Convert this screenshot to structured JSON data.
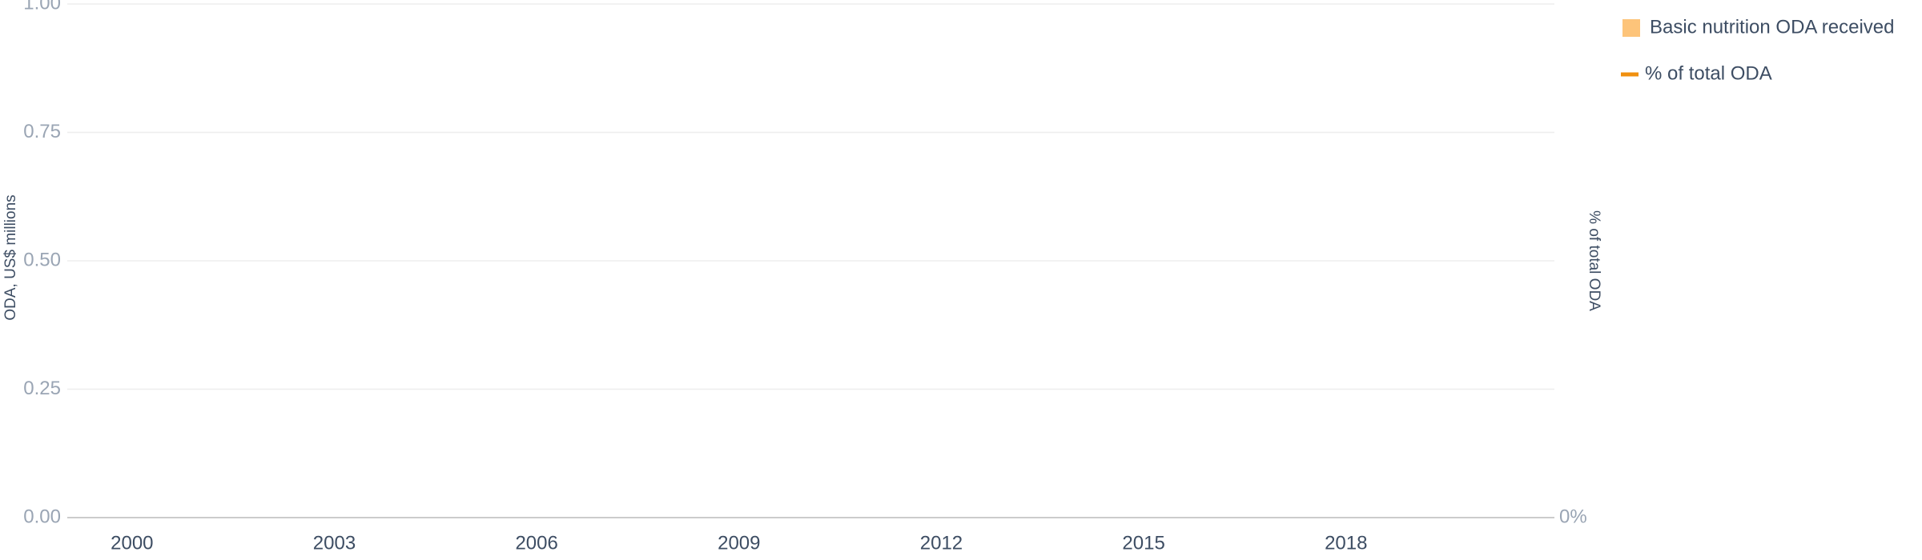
{
  "chart_data": {
    "type": "bar",
    "x": [],
    "xlim": [
      1999.04,
      2021.09
    ],
    "xticks": [
      2000,
      2003,
      2006,
      2009,
      2012,
      2015,
      2018
    ],
    "ylim": [
      0,
      1
    ],
    "yticks": [
      {
        "value": 0,
        "label": "0.00"
      },
      {
        "value": 0.25,
        "label": "0.25"
      },
      {
        "value": 0.5,
        "label": "0.50"
      },
      {
        "value": 0.75,
        "label": "0.75"
      },
      {
        "value": 1,
        "label": "1.00"
      }
    ],
    "y2lim": [
      0,
      1
    ],
    "y2ticks": [
      {
        "value": 0,
        "label": "0%"
      }
    ],
    "ylabel": "ODA, US$ millions",
    "y2label": "% of total ODA",
    "grid": true,
    "series": [
      {
        "name": "Basic nutrition ODA received",
        "type": "bar",
        "color": "#fdc47a",
        "values": []
      },
      {
        "name": "% of total ODA",
        "type": "line",
        "axis": "y2",
        "color": "#f0900f",
        "values": []
      }
    ]
  }
}
